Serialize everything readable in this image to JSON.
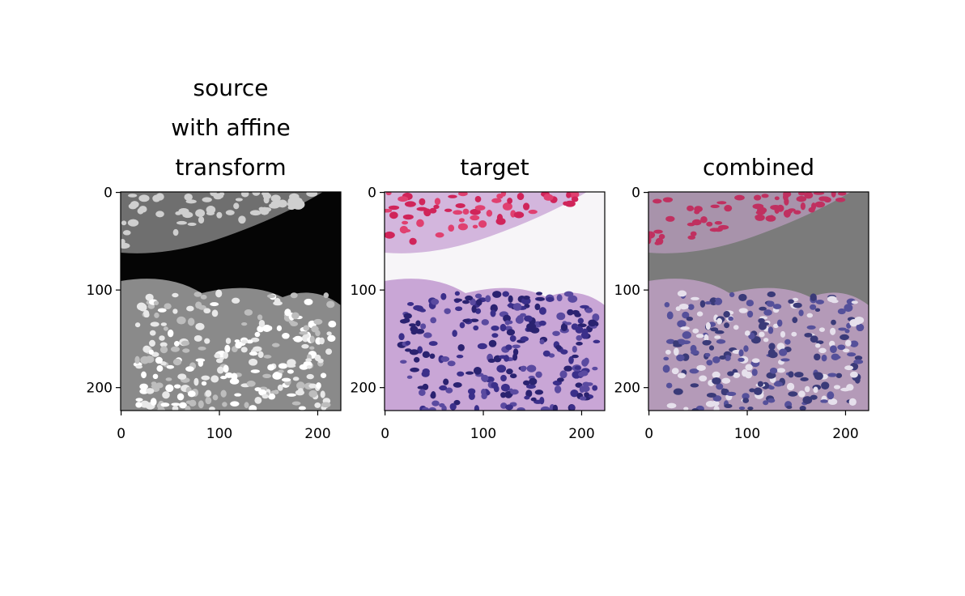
{
  "chart_data": [
    {
      "type": "image",
      "title": "source\nwith affine\ntransform",
      "xlim": [
        -0.5,
        223.5
      ],
      "ylim": [
        223.5,
        -0.5
      ],
      "xticks": [
        0,
        100,
        200
      ],
      "yticks": [
        0,
        100,
        200
      ]
    },
    {
      "type": "image",
      "title": "target",
      "xlim": [
        -0.5,
        223.5
      ],
      "ylim": [
        223.5,
        -0.5
      ],
      "xticks": [
        0,
        100,
        200
      ],
      "yticks": [
        0,
        100,
        200
      ]
    },
    {
      "type": "image",
      "title": "combined",
      "xlim": [
        -0.5,
        223.5
      ],
      "ylim": [
        223.5,
        -0.5
      ],
      "xticks": [
        0,
        100,
        200
      ],
      "yticks": [
        0,
        100,
        200
      ]
    }
  ]
}
